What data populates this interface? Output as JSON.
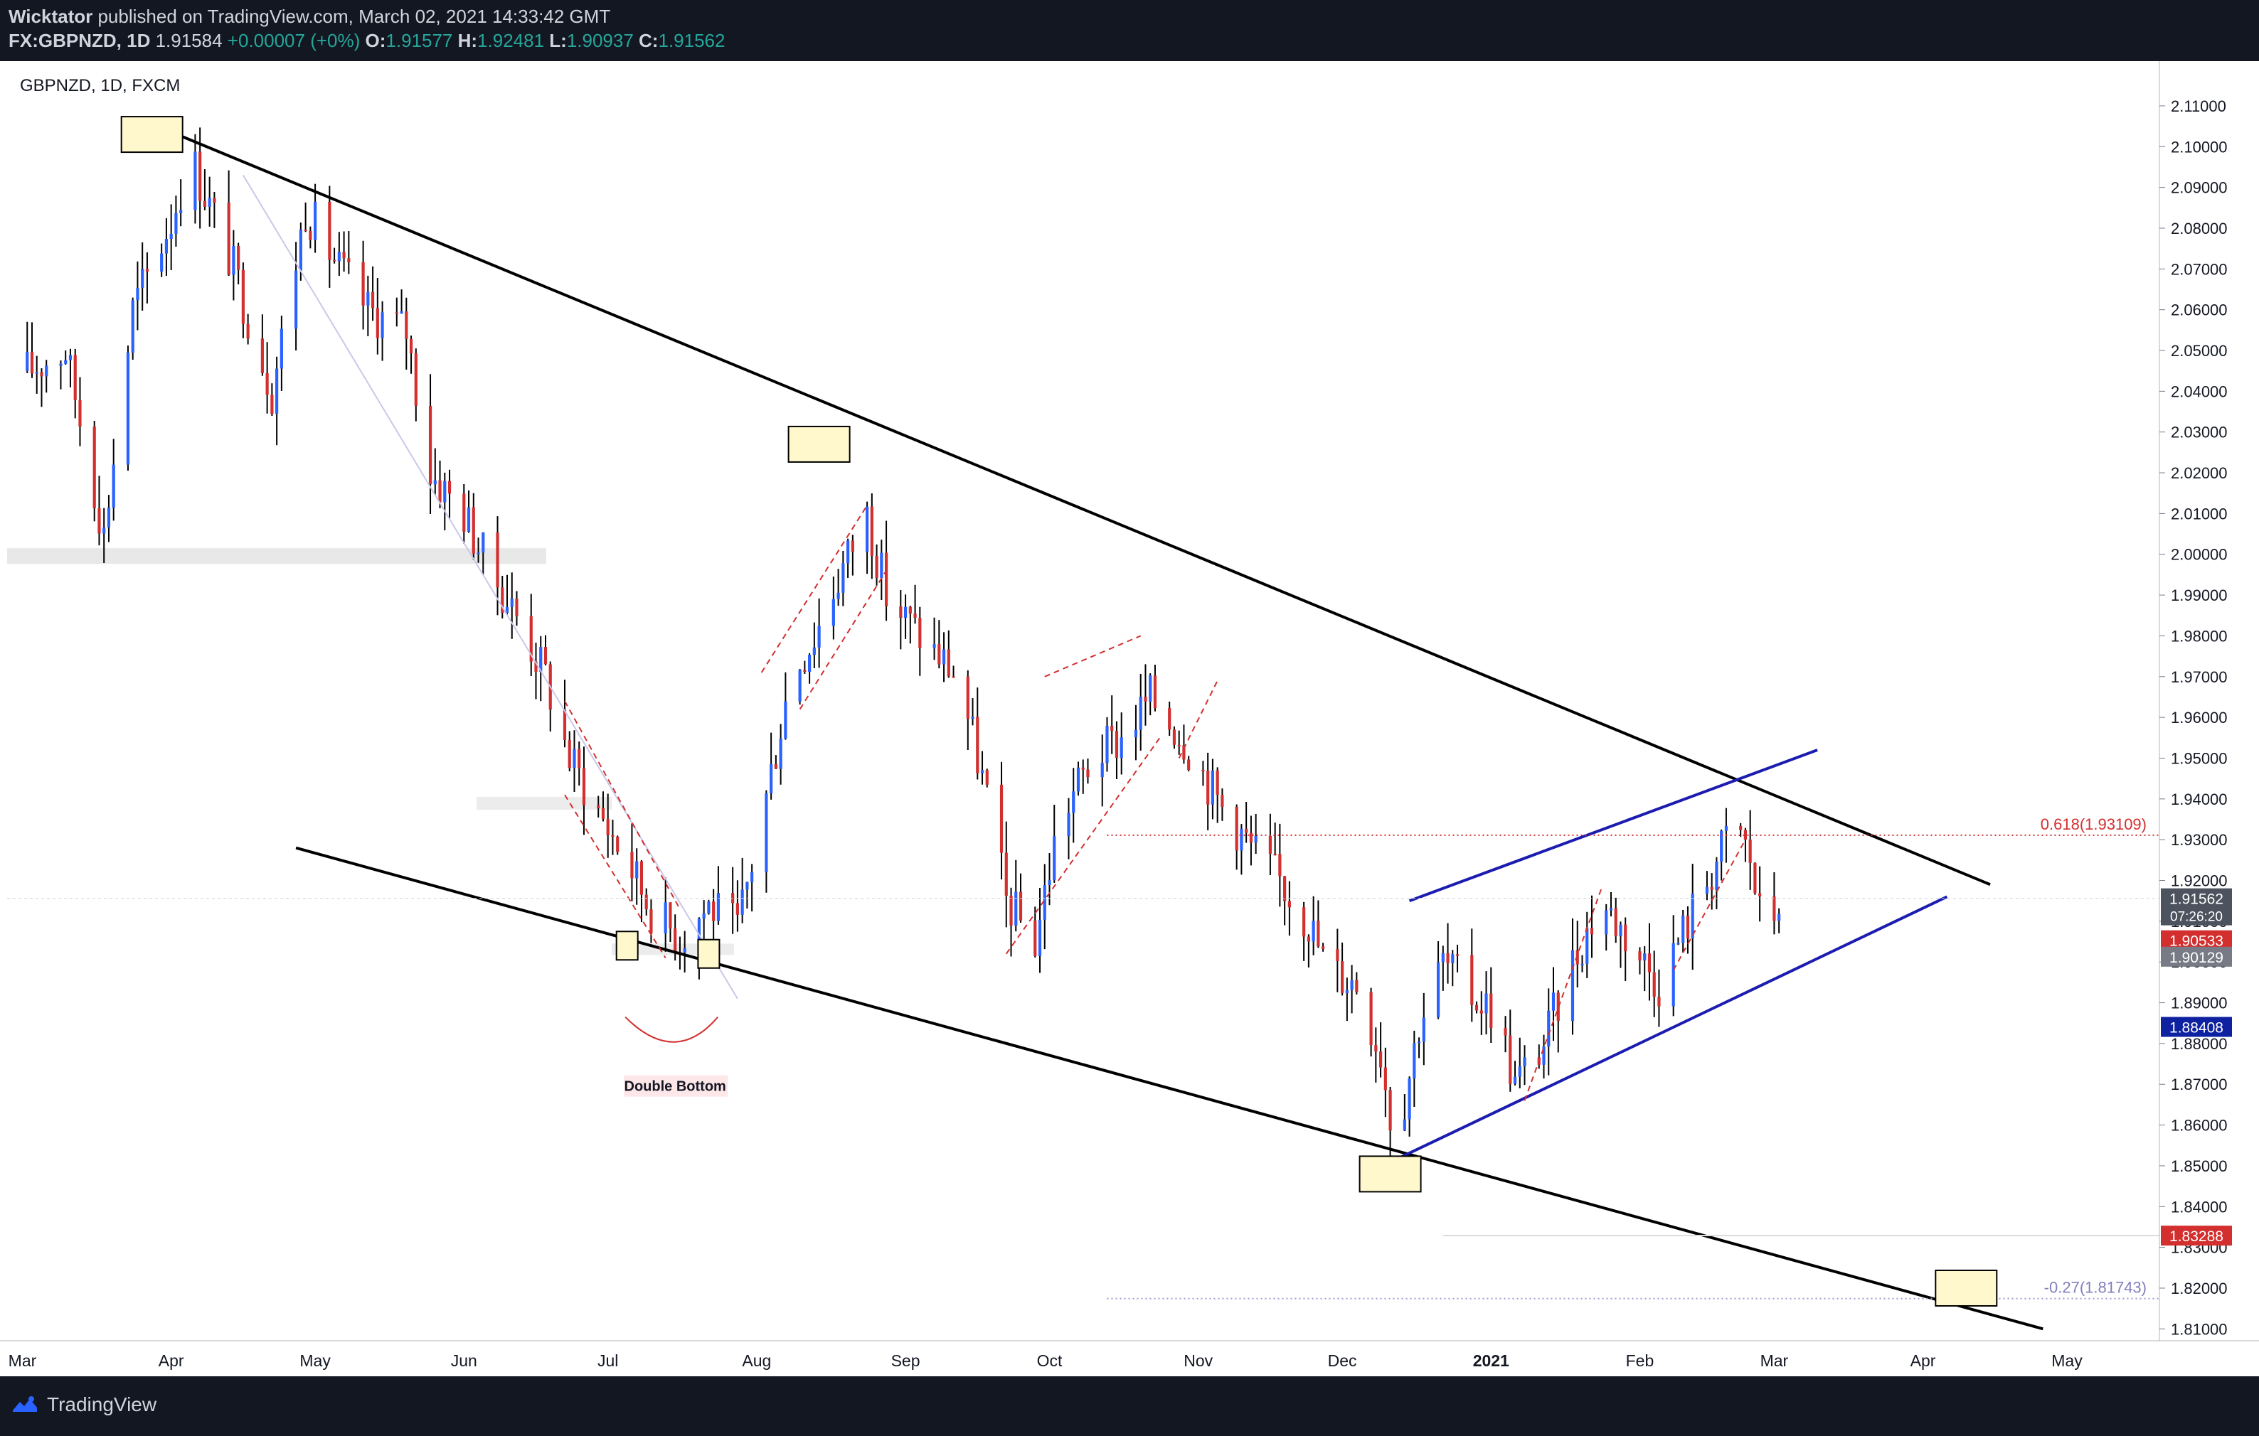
{
  "header": {
    "publisher": "Wicktator",
    "published_text": "published on TradingView.com, March 02, 2021 14:33:42 GMT",
    "symbol": "FX:GBPNZD, 1D",
    "last": "1.91584",
    "change": "+0.00007 (+0%)",
    "o_label": "O:",
    "o": "1.91577",
    "h_label": "H:",
    "h": "1.92481",
    "l_label": "L:",
    "l": "1.90937",
    "c_label": "C:",
    "c": "1.91562"
  },
  "footer": {
    "brand": "TradingView"
  },
  "colors": {
    "up": "#2962ff",
    "down": "#d32f2f",
    "trend": "#000000",
    "channel": "#1c1cb0",
    "fib": "#d32f2f",
    "box_fill": "#fff8cc"
  },
  "chart_data": {
    "type": "candlestick",
    "title": "GBPNZD, 1D, FXCM",
    "y_range": [
      1.805,
      2.114
    ],
    "y_ticks": [
      "2.11000",
      "2.10000",
      "2.09000",
      "2.08000",
      "2.07000",
      "2.06000",
      "2.05000",
      "2.04000",
      "2.03000",
      "2.02000",
      "2.01000",
      "2.00000",
      "1.99000",
      "1.98000",
      "1.97000",
      "1.96000",
      "1.95000",
      "1.94000",
      "1.93000",
      "1.92000",
      "1.91000",
      "1.90000",
      "1.89000",
      "1.88000",
      "1.87000",
      "1.86000",
      "1.85000",
      "1.84000",
      "1.83000",
      "1.82000",
      "1.81000"
    ],
    "x_labels": [
      "Mar",
      "Apr",
      "May",
      "Jun",
      "Jul",
      "Aug",
      "Sep",
      "Oct",
      "Nov",
      "Dec",
      "2021",
      "Feb",
      "Mar",
      "Apr",
      "May"
    ],
    "x_label_dates": [
      "2020-03-01",
      "2020-04-01",
      "2020-05-01",
      "2020-06-01",
      "2020-07-01",
      "2020-08-01",
      "2020-09-01",
      "2020-10-01",
      "2020-11-01",
      "2020-12-01",
      "2021-01-01",
      "2021-02-01",
      "2021-03-01",
      "2021-04-01",
      "2021-05-01"
    ],
    "price_path": [
      [
        "2020-03-02",
        2.045
      ],
      [
        "2020-03-10",
        2.05
      ],
      [
        "2020-03-18",
        2.005
      ],
      [
        "2020-03-24",
        2.06
      ],
      [
        "2020-04-01",
        2.082
      ],
      [
        "2020-04-05",
        2.098
      ],
      [
        "2020-04-14",
        2.07
      ],
      [
        "2020-04-22",
        2.04
      ],
      [
        "2020-04-29",
        2.085
      ],
      [
        "2020-05-06",
        2.07
      ],
      [
        "2020-05-12",
        2.06
      ],
      [
        "2020-05-20",
        2.055
      ],
      [
        "2020-05-25",
        2.02
      ],
      [
        "2020-06-01",
        2.01
      ],
      [
        "2020-06-06",
        1.997
      ],
      [
        "2020-06-12",
        1.985
      ],
      [
        "2020-06-18",
        1.97
      ],
      [
        "2020-06-23",
        1.95
      ],
      [
        "2020-06-29",
        1.937
      ],
      [
        "2020-07-05",
        1.925
      ],
      [
        "2020-07-10",
        1.913
      ],
      [
        "2020-07-16",
        1.906
      ],
      [
        "2020-07-22",
        1.914
      ],
      [
        "2020-07-28",
        1.908
      ],
      [
        "2020-08-02",
        1.935
      ],
      [
        "2020-08-08",
        1.97
      ],
      [
        "2020-08-13",
        1.98
      ],
      [
        "2020-08-19",
        1.997
      ],
      [
        "2020-08-24",
        2.01
      ],
      [
        "2020-08-28",
        1.99
      ],
      [
        "2020-09-04",
        1.98
      ],
      [
        "2020-09-12",
        1.97
      ],
      [
        "2020-09-18",
        1.94
      ],
      [
        "2020-09-22",
        1.915
      ],
      [
        "2020-09-28",
        1.905
      ],
      [
        "2020-10-03",
        1.935
      ],
      [
        "2020-10-10",
        1.95
      ],
      [
        "2020-10-16",
        1.955
      ],
      [
        "2020-10-22",
        1.965
      ],
      [
        "2020-10-29",
        1.955
      ],
      [
        "2020-11-05",
        1.94
      ],
      [
        "2020-11-12",
        1.928
      ],
      [
        "2020-11-18",
        1.92
      ],
      [
        "2020-11-24",
        1.91
      ],
      [
        "2020-11-28",
        1.898
      ],
      [
        "2020-12-04",
        1.895
      ],
      [
        "2020-12-09",
        1.878
      ],
      [
        "2020-12-12",
        1.855
      ],
      [
        "2020-12-17",
        1.885
      ],
      [
        "2020-12-22",
        1.9
      ],
      [
        "2020-12-28",
        1.892
      ],
      [
        "2021-01-02",
        1.888
      ],
      [
        "2021-01-06",
        1.87
      ],
      [
        "2021-01-12",
        1.88
      ],
      [
        "2021-01-18",
        1.9
      ],
      [
        "2021-01-24",
        1.915
      ],
      [
        "2021-01-30",
        1.905
      ],
      [
        "2021-02-05",
        1.895
      ],
      [
        "2021-02-11",
        1.91
      ],
      [
        "2021-02-17",
        1.925
      ],
      [
        "2021-02-21",
        1.935
      ],
      [
        "2021-02-24",
        1.925
      ],
      [
        "2021-02-27",
        1.905
      ],
      [
        "2021-03-02",
        1.9156
      ]
    ],
    "trendlines": [
      {
        "name": "upper-trendline",
        "from": [
          "2020-03-25",
          2.107
        ],
        "to": [
          "2021-04-15",
          1.919
        ]
      },
      {
        "name": "lower-trendline",
        "from": [
          "2020-04-27",
          1.928
        ],
        "to": [
          "2021-04-26",
          1.81
        ]
      },
      {
        "name": "channel-upper",
        "from": [
          "2020-12-15",
          1.915
        ],
        "to": [
          "2021-03-10",
          1.952
        ]
      },
      {
        "name": "channel-lower",
        "from": [
          "2020-12-13",
          1.852
        ],
        "to": [
          "2021-04-06",
          1.916
        ]
      }
    ],
    "fib_lines": [
      {
        "label": "0.618(1.93109)",
        "value": 1.93109
      },
      {
        "label": "-0.27(1.81743)",
        "value": 1.81743
      }
    ],
    "annotations": [
      {
        "label": "Double Bottom",
        "date": "2020-07-15",
        "value": 1.883
      }
    ],
    "price_badges": [
      {
        "value": "1.91562",
        "sub": "07:26:20",
        "color": "#4c525e"
      },
      {
        "value": "1.90533",
        "color": "#d32f2f"
      },
      {
        "value": "1.90129",
        "color": "#787b86"
      },
      {
        "value": "1.88408",
        "color": "#0d21a1"
      },
      {
        "value": "1.83288",
        "color": "#d32f2f"
      }
    ]
  }
}
